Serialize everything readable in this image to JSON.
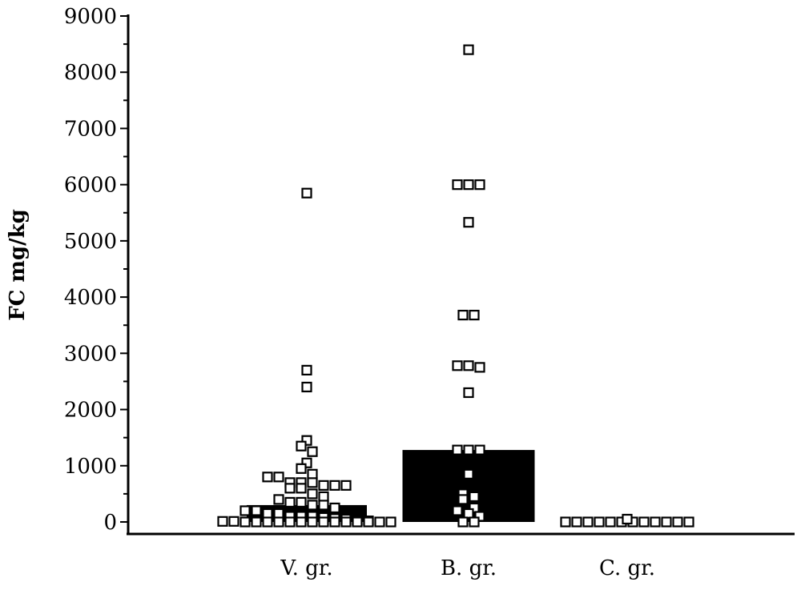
{
  "chart_data": {
    "type": "scatter",
    "title": "",
    "xlabel": "",
    "ylabel": "FC mg/kg",
    "ylim": [
      0,
      9000
    ],
    "y_ticks": [
      "0",
      "1000",
      "2000",
      "3000",
      "4000",
      "5000",
      "6000",
      "7000",
      "8000",
      "9000"
    ],
    "grid": false,
    "legend": "none",
    "categories": [
      "V. gr.",
      "B. gr.",
      "C. gr."
    ],
    "bars": [
      {
        "category": "V. gr.",
        "value": 300
      },
      {
        "category": "B. gr.",
        "value": 1280
      },
      {
        "category": "C. gr.",
        "value": 0
      }
    ],
    "points": [
      {
        "category": "V. gr.",
        "values": [
          5850,
          2700,
          2400,
          1450,
          1350,
          1250,
          1050,
          950,
          850,
          800,
          800,
          700,
          700,
          700,
          650,
          650,
          650,
          600,
          600,
          500,
          450,
          400,
          350,
          350,
          300,
          300,
          250,
          200,
          200,
          150,
          150,
          100,
          100,
          100,
          80,
          60,
          50,
          30,
          20,
          10,
          10,
          0,
          0,
          0,
          0,
          0,
          0,
          0,
          0,
          0,
          0,
          0,
          0,
          0,
          0
        ]
      },
      {
        "category": "B. gr.",
        "values": [
          8400,
          6000,
          6000,
          6000,
          5330,
          3680,
          3680,
          2780,
          2780,
          2750,
          2300,
          1280,
          1280,
          1280,
          850,
          500,
          450,
          400,
          250,
          200,
          150,
          100,
          0,
          0
        ]
      },
      {
        "category": "C. gr.",
        "values": [
          0,
          0,
          0,
          0,
          0,
          0,
          0,
          50,
          0,
          0,
          0,
          0,
          0
        ]
      }
    ],
    "colors": {
      "bar": "#000000",
      "marker_fill": "#ffffff",
      "marker_stroke": "#000000",
      "axis": "#000000"
    }
  }
}
